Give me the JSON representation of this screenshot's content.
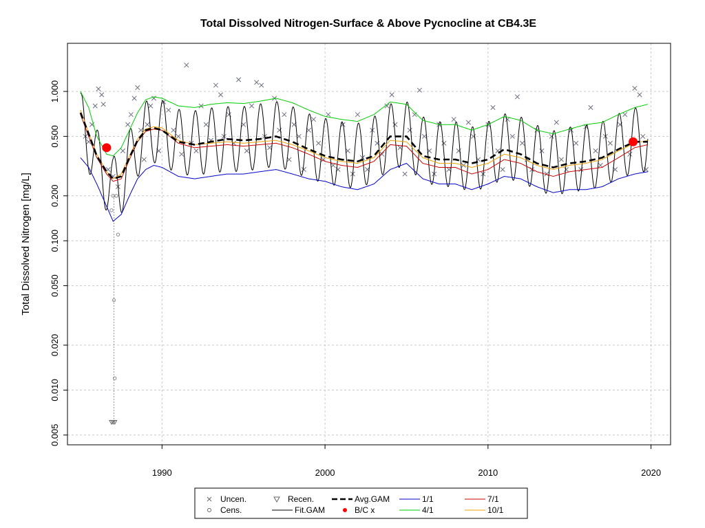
{
  "chart_data": {
    "type": "line",
    "title": "Total Dissolved Nitrogen-Surface & Above Pycnocline at CB4.3E",
    "ylabel": "Total Dissolved Nitrogen [mg/L]",
    "xlabel": "",
    "y_scale": "log",
    "xlim": [
      1984.2,
      2021.2
    ],
    "ylim": [
      0.0043,
      2.1
    ],
    "grid": true,
    "x_ticks": [
      1990,
      2000,
      2010,
      2020
    ],
    "y_ticks": [
      {
        "value": 0.005,
        "label": "0.005"
      },
      {
        "value": 0.01,
        "label": "0.010"
      },
      {
        "value": 0.02,
        "label": "0.020"
      },
      {
        "value": 0.05,
        "label": "0.050"
      },
      {
        "value": 0.1,
        "label": "0.100"
      },
      {
        "value": 0.2,
        "label": "0.200"
      },
      {
        "value": 0.5,
        "label": "0.500"
      },
      {
        "value": 1.0,
        "label": "1.000"
      }
    ],
    "series": [
      {
        "name": "1/1",
        "color": "#0000c8",
        "x": [
          1985,
          1985.5,
          1986,
          1986.6,
          1987,
          1987.5,
          1988,
          1988.5,
          1989,
          1989.5,
          1990,
          1991,
          1992,
          1993,
          1994,
          1995,
          1996,
          1997,
          1998,
          1999,
          2000,
          2001,
          2002,
          2003,
          2004,
          2005,
          2006,
          2007,
          2008,
          2009,
          2010,
          2011,
          2012,
          2013,
          2014,
          2015,
          2016,
          2017,
          2018,
          2019,
          2019.8
        ],
        "values": [
          0.36,
          0.31,
          0.24,
          0.17,
          0.135,
          0.15,
          0.2,
          0.26,
          0.3,
          0.32,
          0.31,
          0.27,
          0.26,
          0.27,
          0.28,
          0.28,
          0.29,
          0.3,
          0.28,
          0.26,
          0.25,
          0.23,
          0.22,
          0.24,
          0.3,
          0.33,
          0.26,
          0.24,
          0.24,
          0.22,
          0.24,
          0.27,
          0.26,
          0.23,
          0.21,
          0.22,
          0.22,
          0.23,
          0.26,
          0.28,
          0.29
        ]
      },
      {
        "name": "4/1",
        "color": "#00cc00",
        "x": [
          1985,
          1985.5,
          1986,
          1986.6,
          1987,
          1987.5,
          1988,
          1988.5,
          1989,
          1989.5,
          1990,
          1991,
          1992,
          1993,
          1994,
          1995,
          1996,
          1997,
          1998,
          1999,
          2000,
          2001,
          2002,
          2003,
          2004,
          2005,
          2006,
          2007,
          2008,
          2009,
          2010,
          2011,
          2012,
          2013,
          2014,
          2015,
          2016,
          2017,
          2018,
          2019,
          2019.8
        ],
        "values": [
          1.0,
          0.78,
          0.5,
          0.38,
          0.37,
          0.42,
          0.55,
          0.72,
          0.88,
          0.92,
          0.9,
          0.8,
          0.78,
          0.82,
          0.84,
          0.83,
          0.86,
          0.9,
          0.84,
          0.75,
          0.68,
          0.65,
          0.63,
          0.7,
          0.85,
          0.82,
          0.64,
          0.6,
          0.6,
          0.55,
          0.6,
          0.68,
          0.64,
          0.55,
          0.52,
          0.56,
          0.6,
          0.62,
          0.7,
          0.78,
          0.82
        ]
      },
      {
        "name": "7/1",
        "color": "#cc0000",
        "x": [
          1985,
          1985.5,
          1986,
          1986.6,
          1987,
          1987.5,
          1988,
          1988.5,
          1989,
          1989.5,
          1990,
          1991,
          1992,
          1993,
          1994,
          1995,
          1996,
          1997,
          1998,
          1999,
          2000,
          2001,
          2002,
          2003,
          2004,
          2005,
          2006,
          2007,
          2008,
          2009,
          2010,
          2011,
          2012,
          2013,
          2014,
          2015,
          2016,
          2017,
          2018,
          2019,
          2019.8
        ],
        "values": [
          0.7,
          0.5,
          0.36,
          0.28,
          0.25,
          0.26,
          0.35,
          0.46,
          0.54,
          0.56,
          0.55,
          0.45,
          0.42,
          0.43,
          0.44,
          0.43,
          0.44,
          0.45,
          0.42,
          0.38,
          0.34,
          0.32,
          0.31,
          0.34,
          0.44,
          0.43,
          0.33,
          0.31,
          0.31,
          0.28,
          0.3,
          0.35,
          0.33,
          0.29,
          0.27,
          0.29,
          0.3,
          0.31,
          0.36,
          0.42,
          0.44
        ]
      },
      {
        "name": "10/1",
        "color": "#f0a000",
        "x": [
          1985,
          1985.5,
          1986,
          1986.6,
          1987,
          1987.5,
          1988,
          1988.5,
          1989,
          1989.5,
          1990,
          1991,
          1992,
          1993,
          1994,
          1995,
          1996,
          1997,
          1998,
          1999,
          2000,
          2001,
          2002,
          2003,
          2004,
          2005,
          2006,
          2007,
          2008,
          2009,
          2010,
          2011,
          2012,
          2013,
          2014,
          2015,
          2016,
          2017,
          2018,
          2019,
          2019.8
        ],
        "values": [
          0.75,
          0.53,
          0.38,
          0.29,
          0.26,
          0.28,
          0.37,
          0.48,
          0.56,
          0.58,
          0.57,
          0.47,
          0.44,
          0.45,
          0.46,
          0.45,
          0.46,
          0.47,
          0.44,
          0.4,
          0.36,
          0.34,
          0.33,
          0.36,
          0.47,
          0.46,
          0.36,
          0.33,
          0.33,
          0.31,
          0.33,
          0.38,
          0.36,
          0.32,
          0.3,
          0.32,
          0.33,
          0.35,
          0.4,
          0.45,
          0.47
        ]
      },
      {
        "name": "Avg.GAM",
        "color": "#000000",
        "style": "dashed",
        "x": [
          1985,
          1985.5,
          1986,
          1986.6,
          1987,
          1987.5,
          1988,
          1988.5,
          1989,
          1989.5,
          1990,
          1991,
          1992,
          1993,
          1994,
          1995,
          1996,
          1997,
          1998,
          1999,
          2000,
          2001,
          2002,
          2003,
          2004,
          2005,
          2006,
          2007,
          2008,
          2009,
          2010,
          2011,
          2012,
          2013,
          2014,
          2015,
          2016,
          2017,
          2018,
          2019,
          2019.8
        ],
        "values": [
          0.72,
          0.52,
          0.37,
          0.29,
          0.26,
          0.27,
          0.36,
          0.47,
          0.55,
          0.57,
          0.55,
          0.46,
          0.44,
          0.46,
          0.48,
          0.47,
          0.48,
          0.5,
          0.46,
          0.41,
          0.37,
          0.35,
          0.34,
          0.37,
          0.5,
          0.5,
          0.37,
          0.35,
          0.35,
          0.33,
          0.35,
          0.41,
          0.38,
          0.33,
          0.31,
          0.33,
          0.34,
          0.36,
          0.41,
          0.46,
          0.46
        ]
      },
      {
        "name": "Fit.GAM",
        "color": "#000000",
        "style": "seasonal",
        "amplitude_ratio": 1.65,
        "x": [
          1985,
          1985.5,
          1986,
          1986.6,
          1987,
          1987.5,
          1988,
          1988.5,
          1989,
          1989.5,
          1990,
          1991,
          1992,
          1993,
          1994,
          1995,
          1996,
          1997,
          1998,
          1999,
          2000,
          2001,
          2002,
          2003,
          2004,
          2005,
          2006,
          2007,
          2008,
          2009,
          2010,
          2011,
          2012,
          2013,
          2014,
          2015,
          2016,
          2017,
          2018,
          2019,
          2019.8
        ],
        "values": [
          0.6,
          0.48,
          0.34,
          0.26,
          0.22,
          0.25,
          0.33,
          0.44,
          0.52,
          0.55,
          0.53,
          0.46,
          0.45,
          0.47,
          0.48,
          0.48,
          0.5,
          0.52,
          0.48,
          0.43,
          0.4,
          0.38,
          0.37,
          0.41,
          0.5,
          0.52,
          0.41,
          0.38,
          0.38,
          0.35,
          0.38,
          0.43,
          0.41,
          0.36,
          0.33,
          0.35,
          0.36,
          0.38,
          0.43,
          0.47,
          0.48
        ]
      }
    ],
    "uncensored_points": {
      "name": "Uncen.",
      "x": [
        1985.3,
        1985.5,
        1985.7,
        1985.9,
        1986.1,
        1986.3,
        1986.4,
        1986.5,
        1986.7,
        1987.0,
        1987.3,
        1987.6,
        1987.9,
        1988.1,
        1988.3,
        1988.5,
        1988.7,
        1988.9,
        1989.1,
        1989.3,
        1989.5,
        1989.8,
        1990.1,
        1990.4,
        1990.7,
        1991.0,
        1991.2,
        1991.5,
        1991.8,
        1992.1,
        1992.4,
        1992.7,
        1993.0,
        1993.3,
        1993.6,
        1993.8,
        1994.1,
        1994.4,
        1994.7,
        1995.0,
        1995.2,
        1995.5,
        1995.8,
        1996.1,
        1996.3,
        1996.6,
        1996.9,
        1997.2,
        1997.5,
        1997.8,
        1998.1,
        1998.4,
        1998.7,
        1999.0,
        1999.3,
        1999.6,
        1999.9,
        2000.2,
        2000.5,
        2000.8,
        2001.1,
        2001.4,
        2001.7,
        2002.0,
        2002.3,
        2002.6,
        2002.9,
        2003.2,
        2003.5,
        2003.8,
        2004.1,
        2004.3,
        2004.6,
        2004.9,
        2005.2,
        2005.5,
        2005.8,
        2006.1,
        2006.4,
        2006.7,
        2007.0,
        2007.3,
        2007.6,
        2007.9,
        2008.2,
        2008.5,
        2008.8,
        2009.1,
        2009.4,
        2009.7,
        2010.0,
        2010.3,
        2010.6,
        2010.9,
        2011.2,
        2011.5,
        2011.8,
        2012.1,
        2012.4,
        2012.7,
        2013.0,
        2013.3,
        2013.6,
        2013.9,
        2014.2,
        2014.5,
        2014.8,
        2015.1,
        2015.4,
        2015.7,
        2016.0,
        2016.3,
        2016.6,
        2016.9,
        2017.2,
        2017.5,
        2017.8,
        2018.1,
        2018.4,
        2018.7,
        2019.0,
        2019.3,
        2019.5,
        2019.7
      ],
      "values": [
        0.5,
        0.46,
        0.6,
        0.8,
        1.04,
        0.95,
        0.82,
        0.42,
        0.3,
        0.27,
        0.23,
        0.4,
        0.6,
        0.7,
        0.9,
        1.06,
        0.55,
        0.35,
        0.6,
        0.8,
        0.9,
        0.4,
        0.85,
        0.75,
        0.55,
        0.5,
        0.38,
        1.5,
        0.45,
        0.4,
        0.8,
        0.6,
        0.47,
        1.1,
        0.95,
        0.5,
        0.7,
        0.45,
        1.2,
        0.6,
        0.4,
        0.8,
        1.15,
        1.1,
        0.5,
        0.42,
        0.9,
        0.55,
        0.7,
        0.35,
        0.6,
        0.5,
        0.3,
        0.55,
        0.65,
        0.45,
        0.35,
        0.7,
        0.32,
        0.3,
        0.6,
        0.4,
        0.28,
        0.7,
        0.36,
        0.3,
        0.55,
        0.45,
        0.38,
        0.8,
        0.95,
        0.6,
        0.42,
        0.28,
        0.55,
        0.7,
        1.02,
        0.5,
        0.4,
        0.28,
        0.6,
        0.45,
        0.3,
        0.65,
        0.4,
        0.32,
        0.62,
        0.5,
        0.35,
        0.28,
        0.6,
        0.78,
        0.4,
        0.3,
        0.65,
        0.5,
        0.92,
        0.45,
        0.35,
        0.3,
        0.55,
        0.4,
        0.28,
        0.5,
        0.62,
        0.35,
        0.3,
        0.55,
        0.45,
        0.3,
        0.58,
        0.78,
        0.4,
        0.32,
        0.5,
        0.45,
        0.3,
        0.6,
        0.7,
        0.38,
        1.05,
        0.95,
        0.5,
        0.3
      ]
    },
    "censored_points": {
      "name": "Cens.",
      "x": [
        1986.9,
        1987.0,
        1987.05,
        1987.1,
        1987.2,
        1987.3
      ],
      "values": [
        0.16,
        0.2,
        0.04,
        0.012,
        0.2,
        0.11
      ]
    },
    "recensored_points": {
      "name": "Recen.",
      "x": [
        1986.9,
        1987.0,
        1987.1
      ],
      "values": [
        0.0061,
        0.0061,
        0.0061
      ]
    },
    "bc_points": {
      "name": "B/C x",
      "color": "#ff0000",
      "x": [
        1986.6,
        2018.9
      ],
      "values": [
        0.42,
        0.46
      ]
    },
    "censor_ranges": [
      {
        "x": 1987.05,
        "low": 0.0061,
        "high": 0.2
      }
    ],
    "legend": {
      "placement": "bottom-center",
      "entries": [
        {
          "label": "Uncen.",
          "symbol": "x",
          "color": "#666666"
        },
        {
          "label": "Cens.",
          "symbol": "circle",
          "color": "#666666"
        },
        {
          "label": "Recen.",
          "symbol": "triangle",
          "color": "#666666"
        },
        {
          "label": "Fit.GAM",
          "symbol": "line",
          "color": "#000000"
        },
        {
          "label": "Avg.GAM",
          "symbol": "dashed",
          "color": "#000000"
        },
        {
          "label": "B/C x",
          "symbol": "dot",
          "color": "#ff0000"
        },
        {
          "label": "1/1",
          "symbol": "line",
          "color": "#0000c8"
        },
        {
          "label": "4/1",
          "symbol": "line",
          "color": "#00cc00"
        },
        {
          "label": "7/1",
          "symbol": "line",
          "color": "#cc0000"
        },
        {
          "label": "10/1",
          "symbol": "line",
          "color": "#f0a000"
        }
      ]
    }
  }
}
